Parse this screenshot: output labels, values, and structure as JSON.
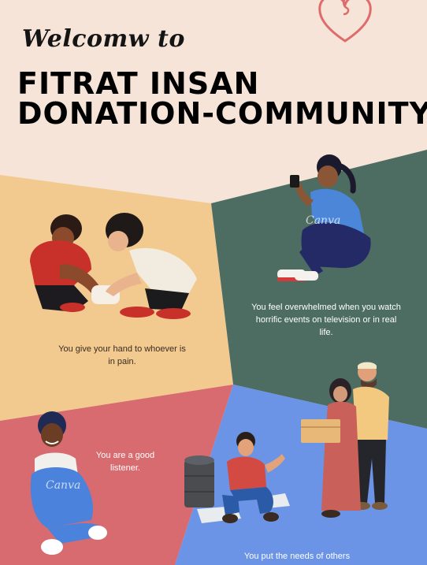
{
  "header": {
    "welcome": "Welcomw to",
    "title_line1": "FITRAT INSAN",
    "title_line2": "DONATION-COMMUNITY"
  },
  "panels": {
    "hand": {
      "caption": "You give your hand to whoever is in pain."
    },
    "overwhelm": {
      "caption": "You feel overwhelmed when you watch horrific events on television or in real life."
    },
    "listener": {
      "caption": "You are a good listener."
    },
    "needs": {
      "caption": "You put the needs of others"
    }
  },
  "watermark": "Canva",
  "colors": {
    "background": "#f6e4d8",
    "peach": "#f2ca90",
    "green": "#4d6d62",
    "rose": "#d86b6f",
    "blue": "#6b93e6",
    "heart": "#de6c6c"
  },
  "icons": [
    "heart-outline-icon"
  ]
}
